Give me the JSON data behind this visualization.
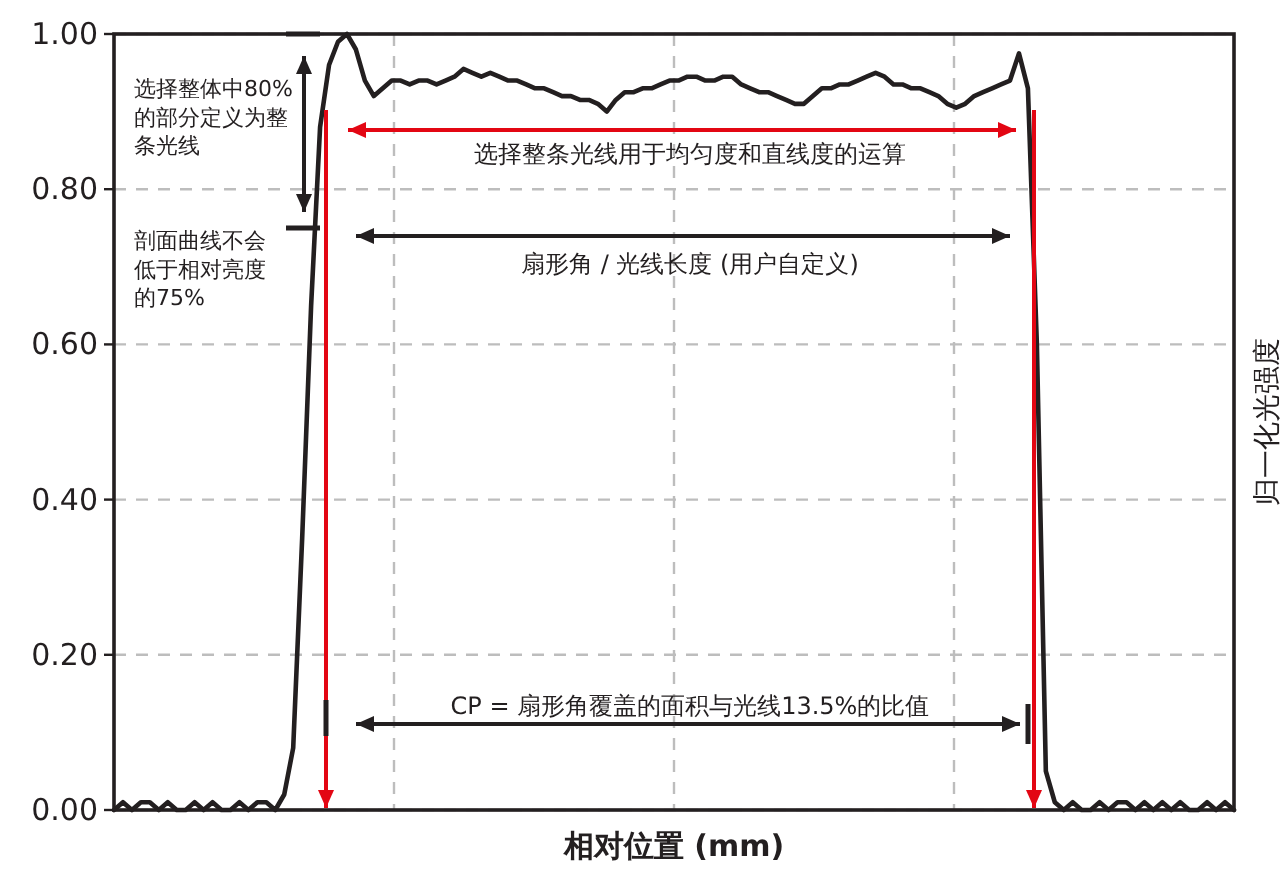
{
  "chart_data": {
    "type": "line",
    "xlabel": "相对位置 (mm)",
    "ylabel": "归一化光强度",
    "categories": [
      null,
      null,
      null,
      null,
      null,
      null,
      null,
      null,
      null,
      null,
      null,
      null,
      null,
      null,
      null,
      null,
      null,
      null,
      null,
      null,
      null,
      null,
      null,
      null,
      null,
      null,
      null,
      null,
      null,
      null,
      null,
      null,
      null,
      null,
      null,
      null,
      null,
      null,
      null,
      null,
      null,
      null,
      null,
      null,
      null,
      null,
      null,
      null,
      null,
      null,
      null,
      null,
      null,
      null,
      null,
      null,
      null,
      null,
      null,
      null,
      null,
      null,
      null,
      null,
      null,
      null,
      null,
      null,
      null,
      null,
      null,
      null,
      null,
      null,
      null,
      null,
      null,
      null,
      null,
      null,
      null,
      null,
      null,
      null,
      null,
      null,
      null,
      null,
      null,
      null,
      null,
      null,
      null,
      null,
      null,
      null,
      null,
      null,
      null,
      null,
      null,
      null,
      null,
      null,
      null,
      null,
      null,
      null,
      null,
      null,
      null,
      null,
      null,
      null,
      null,
      null,
      null,
      null,
      null,
      null,
      null,
      null,
      null,
      null,
      null,
      null
    ],
    "series": [
      {
        "color": "#231f20",
        "values": [
          0.0,
          0.01,
          0.0,
          0.01,
          0.01,
          0.0,
          0.01,
          0.0,
          0.0,
          0.01,
          0.0,
          0.01,
          0.0,
          0.0,
          0.01,
          0.0,
          0.01,
          0.01,
          0.0,
          0.02,
          0.08,
          0.35,
          0.65,
          0.88,
          0.96,
          0.99,
          1.0,
          0.98,
          0.94,
          0.92,
          0.93,
          0.94,
          0.94,
          0.935,
          0.94,
          0.94,
          0.935,
          0.94,
          0.945,
          0.955,
          0.95,
          0.945,
          0.95,
          0.945,
          0.94,
          0.94,
          0.935,
          0.93,
          0.93,
          0.925,
          0.92,
          0.92,
          0.915,
          0.915,
          0.91,
          0.9,
          0.915,
          0.925,
          0.925,
          0.93,
          0.93,
          0.935,
          0.94,
          0.94,
          0.945,
          0.945,
          0.94,
          0.94,
          0.945,
          0.945,
          0.935,
          0.93,
          0.925,
          0.925,
          0.92,
          0.915,
          0.91,
          0.91,
          0.92,
          0.93,
          0.93,
          0.935,
          0.935,
          0.94,
          0.945,
          0.95,
          0.945,
          0.935,
          0.935,
          0.93,
          0.93,
          0.925,
          0.92,
          0.91,
          0.905,
          0.91,
          0.92,
          0.925,
          0.93,
          0.935,
          0.94,
          0.975,
          0.93,
          0.6,
          0.05,
          0.01,
          0.0,
          0.01,
          0.0,
          0.0,
          0.01,
          0.0,
          0.01,
          0.01,
          0.0,
          0.01,
          0.0,
          0.01,
          0.0,
          0.01,
          0.0,
          0.0,
          0.01,
          0.0,
          0.01,
          0.0
        ]
      }
    ],
    "ylim": [
      0,
      1
    ],
    "yticks": [
      {
        "value": 0,
        "label": "0.00"
      },
      {
        "value": 0.2,
        "label": "0.20"
      },
      {
        "value": 0.4,
        "label": "0.40"
      },
      {
        "value": 0.6,
        "label": "0.60"
      },
      {
        "value": 0.8,
        "label": "0.80"
      },
      {
        "value": 1,
        "label": "1.00"
      }
    ],
    "grid": true,
    "marker": "none",
    "line_style": "solid",
    "tick_labels": "y",
    "annotations": [
      "选择整体中80%的部分定义为整条光线",
      "剖面曲线不会低于相对亮度的75%",
      "选择整条光线用于均匀度和直线度的运算",
      "扇形角 / 光线长度 (用户自定义)",
      "CP = 扇形角覆盖的面积与光线13.5%的比值"
    ]
  }
}
